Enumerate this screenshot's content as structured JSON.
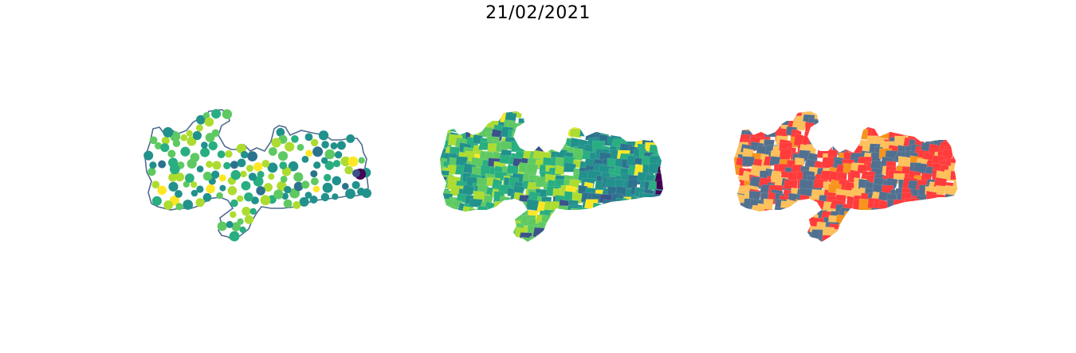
{
  "title": "21/02/2021",
  "colors": {
    "outline": "#4f6d8f",
    "viridis": [
      "#440154",
      "#3b528b",
      "#2c728e",
      "#21918c",
      "#28ae80",
      "#5ec962",
      "#addc30",
      "#fde725"
    ],
    "risk": [
      "#ff3b3b",
      "#f7941d",
      "#fdc05a",
      "#51708f"
    ]
  },
  "maps": [
    {
      "name": "bubble-map",
      "kind": "points-with-outline"
    },
    {
      "name": "choropleth-viridis",
      "kind": "choropleth"
    },
    {
      "name": "choropleth-risk",
      "kind": "choropleth-categorical"
    }
  ]
}
